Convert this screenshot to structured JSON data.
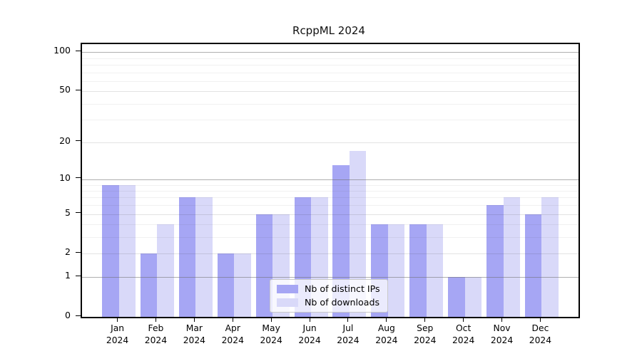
{
  "title": "RcppML 2024",
  "chart_data": {
    "type": "bar",
    "categories": [
      "Jan",
      "Feb",
      "Mar",
      "Apr",
      "May",
      "Jun",
      "Jul",
      "Aug",
      "Sep",
      "Oct",
      "Nov",
      "Dec"
    ],
    "category_year": "2024",
    "series": [
      {
        "name": "Nb of distinct IPs",
        "color": "#a6a6f4",
        "values": [
          9,
          2,
          7,
          2,
          5,
          7,
          13,
          4,
          4,
          1,
          6,
          5
        ]
      },
      {
        "name": "Nb of downloads",
        "color": "#d9d9f9",
        "values": [
          9,
          4,
          7,
          2,
          5,
          7,
          17,
          4,
          4,
          1,
          7,
          7
        ]
      }
    ],
    "title": "RcppML 2024",
    "xlabel": "",
    "ylabel": "",
    "y_axis": {
      "scale": "log10(1+x)",
      "tick_values": [
        0,
        1,
        2,
        5,
        10,
        20,
        50,
        100
      ],
      "tick_labels": [
        "0",
        "1",
        "2",
        "5",
        "10",
        "20",
        "50",
        "100"
      ],
      "minor_gridline_values": [
        3,
        4,
        6,
        7,
        8,
        9,
        30,
        40,
        60,
        70,
        80,
        90
      ],
      "strong_gridline_values": [
        1,
        10,
        100
      ],
      "range_top": 110
    },
    "grid": true,
    "legend": {
      "position": "bottom-center",
      "entries": [
        "Nb of distinct IPs",
        "Nb of downloads"
      ]
    }
  },
  "colors": {
    "bar_ips": "#a6a6f4",
    "bar_downloads": "#d9d9f9",
    "axis": "#000000",
    "gridline_strong": "#b5b5b5",
    "gridline_mid": "#dcdcdc",
    "gridline_weak": "#efefef",
    "legend_border": "#c9c9c9",
    "background": "#ffffff"
  }
}
